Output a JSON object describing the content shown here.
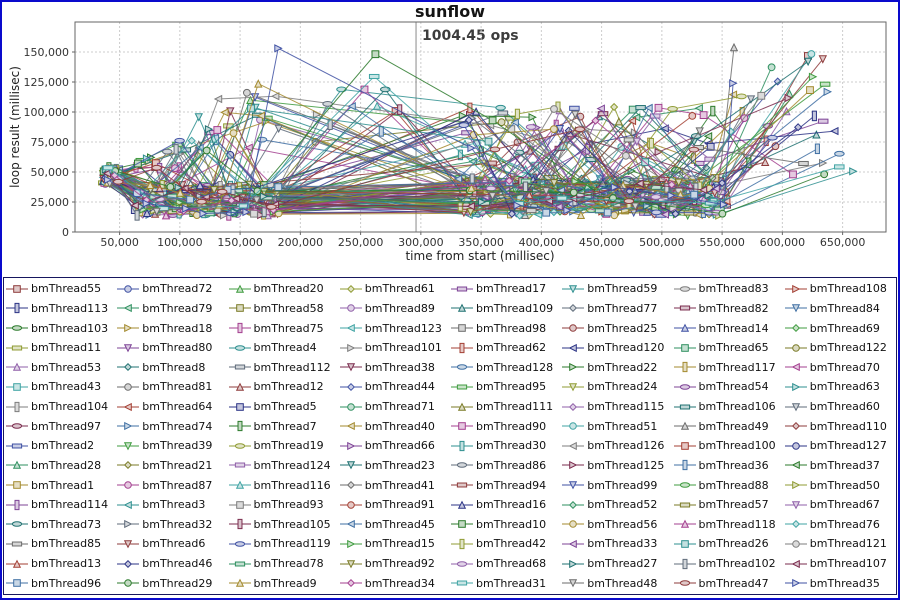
{
  "chart_data": {
    "type": "scatter",
    "title": "sunflow",
    "xlabel": "time from start (millisec)",
    "ylabel": "loop result (millisec)",
    "annotation": {
      "label": "1004.45 ops",
      "x": 296000
    },
    "crosshair_x": 296000,
    "xlim": [
      13000,
      686000
    ],
    "ylim": [
      0,
      175000
    ],
    "xtick_values": [
      50000,
      100000,
      150000,
      200000,
      250000,
      300000,
      350000,
      400000,
      450000,
      500000,
      550000,
      600000,
      650000
    ],
    "xtick_labels": [
      "50,000",
      "100,000",
      "150,000",
      "200,000",
      "250,000",
      "300,000",
      "350,000",
      "400,000",
      "450,000",
      "500,000",
      "550,000",
      "600,000",
      "650,000"
    ],
    "ytick_values": [
      0,
      25000,
      50000,
      75000,
      100000,
      125000,
      150000
    ],
    "ytick_labels": [
      "0",
      "25,000",
      "50,000",
      "75,000",
      "100,000",
      "125,000",
      "150,000"
    ],
    "grid": "dashed-both",
    "legend_position": "bottom",
    "series_names": [
      "bmThread55",
      "bmThread72",
      "bmThread20",
      "bmThread61",
      "bmThread17",
      "bmThread59",
      "bmThread83",
      "bmThread108",
      "bmThread113",
      "bmThread79",
      "bmThread58",
      "bmThread89",
      "bmThread109",
      "bmThread77",
      "bmThread82",
      "bmThread84",
      "bmThread103",
      "bmThread18",
      "bmThread75",
      "bmThread123",
      "bmThread98",
      "bmThread25",
      "bmThread14",
      "bmThread69",
      "bmThread11",
      "bmThread80",
      "bmThread4",
      "bmThread101",
      "bmThread62",
      "bmThread120",
      "bmThread65",
      "bmThread122",
      "bmThread53",
      "bmThread8",
      "bmThread112",
      "bmThread38",
      "bmThread128",
      "bmThread22",
      "bmThread117",
      "bmThread70",
      "bmThread43",
      "bmThread81",
      "bmThread12",
      "bmThread44",
      "bmThread95",
      "bmThread24",
      "bmThread54",
      "bmThread63",
      "bmThread104",
      "bmThread64",
      "bmThread5",
      "bmThread71",
      "bmThread111",
      "bmThread115",
      "bmThread106",
      "bmThread60",
      "bmThread97",
      "bmThread74",
      "bmThread7",
      "bmThread40",
      "bmThread90",
      "bmThread51",
      "bmThread49",
      "bmThread110",
      "bmThread2",
      "bmThread39",
      "bmThread19",
      "bmThread66",
      "bmThread30",
      "bmThread126",
      "bmThread100",
      "bmThread127",
      "bmThread28",
      "bmThread21",
      "bmThread124",
      "bmThread23",
      "bmThread86",
      "bmThread125",
      "bmThread36",
      "bmThread37",
      "bmThread1",
      "bmThread87",
      "bmThread116",
      "bmThread41",
      "bmThread94",
      "bmThread99",
      "bmThread88",
      "bmThread50",
      "bmThread114",
      "bmThread3",
      "bmThread93",
      "bmThread91",
      "bmThread16",
      "bmThread52",
      "bmThread57",
      "bmThread67",
      "bmThread73",
      "bmThread32",
      "bmThread105",
      "bmThread45",
      "bmThread10",
      "bmThread56",
      "bmThread118",
      "bmThread76",
      "bmThread85",
      "bmThread6",
      "bmThread119",
      "bmThread15",
      "bmThread42",
      "bmThread33",
      "bmThread26",
      "bmThread121",
      "bmThread13",
      "bmThread46",
      "bmThread78",
      "bmThread92",
      "bmThread68",
      "bmThread27",
      "bmThread102",
      "bmThread107",
      "bmThread96",
      "bmThread29",
      "bmThread9",
      "bmThread34",
      "bmThread31",
      "bmThread48",
      "bmThread47",
      "bmThread35"
    ],
    "marker_shape_cycle": [
      "square",
      "circle",
      "triangle-up",
      "diamond",
      "rect-horizontal",
      "triangle-down",
      "ellipse",
      "triangle-right",
      "rect-vertical",
      "triangle-left"
    ],
    "palette_cycle": [
      "#8e3b3b",
      "#3f51a3",
      "#3f9b3f",
      "#8f9b33",
      "#7d4396",
      "#2e8f8f",
      "#7d7d7d",
      "#a33f33",
      "#2b3385",
      "#2e8f5f",
      "#7a7a26",
      "#8f5fa8",
      "#1f7070",
      "#5f6b7a",
      "#7a2b4d",
      "#3f6fa3",
      "#2b7a2b",
      "#a38a2e",
      "#a33f8f",
      "#3fa3a3",
      "#6b6b6b"
    ],
    "point_generation": {
      "note": "original point cloud too dense to digitize; approximated by seeded model",
      "seed": 1234,
      "origin_x": [
        36000,
        51000
      ],
      "origin_y": [
        40000,
        54000
      ],
      "points_left": [
        2,
        5
      ],
      "left_cluster_x": [
        58000,
        188000
      ],
      "left_cluster_y": [
        13500,
        39500
      ],
      "left_spike_prob": 0.13,
      "left_spike_base": 52000,
      "left_spike_span": 108000,
      "mid_spike_prob": 0.12,
      "mid_spike_x": [
        190000,
        285000
      ],
      "mid_spike_y": [
        70000,
        162000
      ],
      "points_right": [
        3,
        6
      ],
      "right_cluster_x": [
        325000,
        560000
      ],
      "right_cluster_y": [
        13500,
        45500
      ],
      "right_spike_prob": 0.17,
      "right_spike_y": [
        50000,
        105000
      ],
      "tail_prob": 0.42,
      "tail_x": [
        552000,
        660000
      ],
      "tail_y": [
        48000,
        155000
      ]
    }
  },
  "colors": {
    "frame_border": "#0a0acc",
    "legend_border": "#16165e",
    "plot_border": "#666666",
    "grid": "#cccccc",
    "crosshair": "#8a8a8a",
    "tick_text": "#333333",
    "title_text": "#141414",
    "annotation_text": "#3c3c3c"
  }
}
